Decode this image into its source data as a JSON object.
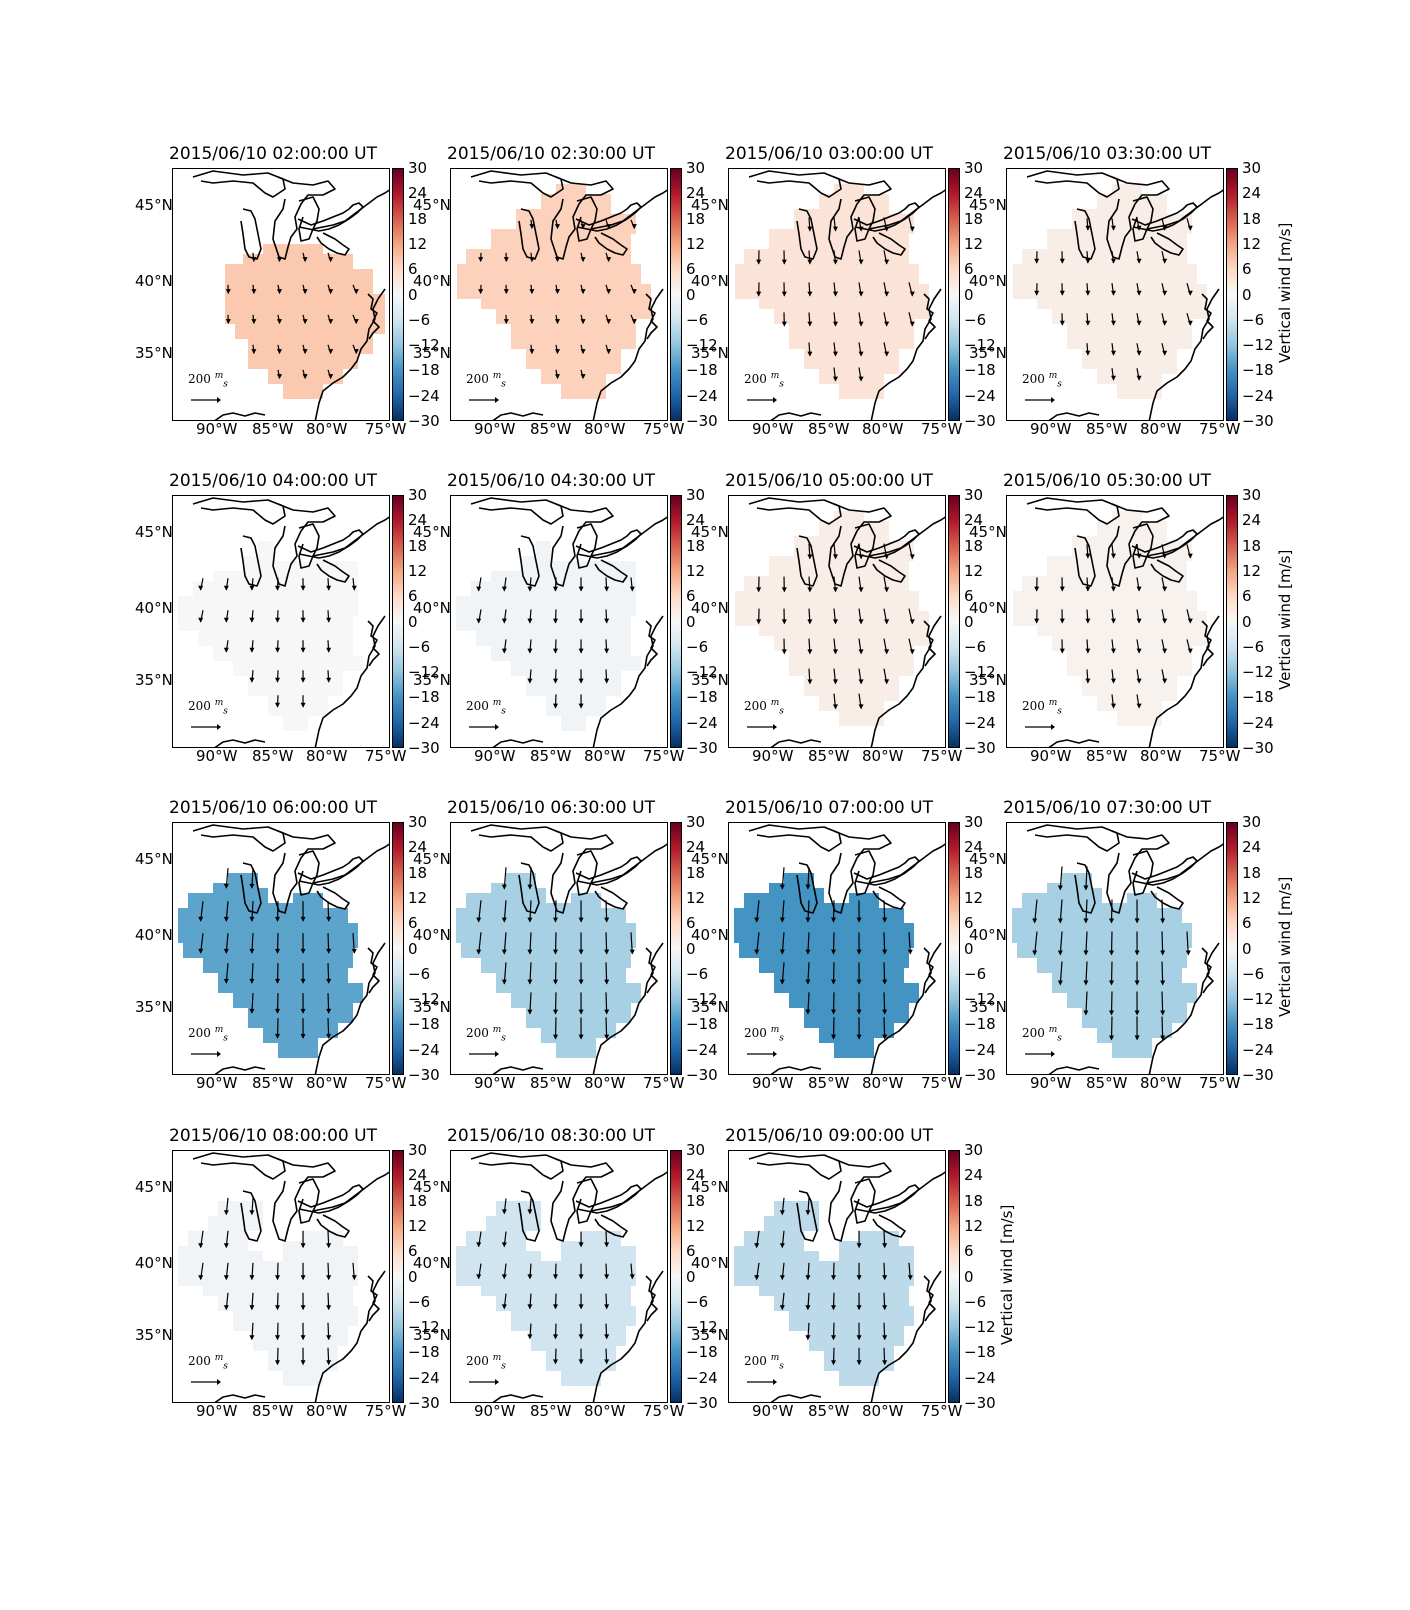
{
  "colorbar": {
    "ticks": [
      "30",
      "24",
      "18",
      "12",
      "6",
      "0",
      "−6",
      "−12",
      "−18",
      "−24",
      "−30"
    ],
    "range": [
      -30,
      30
    ],
    "label": "Vertical wind [m/s]",
    "colormap": [
      "#67001f",
      "#b2182b",
      "#d6604d",
      "#f4a582",
      "#fddbc7",
      "#f7f7f7",
      "#d1e5f0",
      "#92c5de",
      "#4393c3",
      "#2166ac",
      "#053061"
    ]
  },
  "axes": {
    "lon_ticks": [
      "90°W",
      "85°W",
      "80°W",
      "75°W"
    ],
    "lat_ticks": [
      "45°N",
      "40°N",
      "35°N"
    ]
  },
  "scale_arrow": {
    "value": "200",
    "unit_num": "m",
    "unit_den": "s"
  },
  "panels": [
    {
      "title": "2015/06/10 02:00:00 UT",
      "vertical_wind": 8,
      "shape": "A",
      "arrow_strength": 0.2
    },
    {
      "title": "2015/06/10 02:30:00 UT",
      "vertical_wind": 7,
      "shape": "B",
      "arrow_strength": 0.2
    },
    {
      "title": "2015/06/10 03:00:00 UT",
      "vertical_wind": 4,
      "shape": "B",
      "arrow_strength": 0.5
    },
    {
      "title": "2015/06/10 03:30:00 UT",
      "vertical_wind": 2,
      "shape": "B",
      "arrow_strength": 0.4
    },
    {
      "title": "2015/06/10 04:00:00 UT",
      "vertical_wind": 0,
      "shape": "C",
      "arrow_strength": 0.4
    },
    {
      "title": "2015/06/10 04:30:00 UT",
      "vertical_wind": -1,
      "shape": "C",
      "arrow_strength": 0.5
    },
    {
      "title": "2015/06/10 05:00:00 UT",
      "vertical_wind": 2,
      "shape": "B",
      "arrow_strength": 0.6
    },
    {
      "title": "2015/06/10 05:30:00 UT",
      "vertical_wind": 1,
      "shape": "B",
      "arrow_strength": 0.5
    },
    {
      "title": "2015/06/10 06:00:00 UT",
      "vertical_wind": -16,
      "shape": "D",
      "arrow_strength": 0.9
    },
    {
      "title": "2015/06/10 06:30:00 UT",
      "vertical_wind": -10,
      "shape": "D",
      "arrow_strength": 1.0
    },
    {
      "title": "2015/06/10 07:00:00 UT",
      "vertical_wind": -18,
      "shape": "D",
      "arrow_strength": 1.0
    },
    {
      "title": "2015/06/10 07:30:00 UT",
      "vertical_wind": -10,
      "shape": "D",
      "arrow_strength": 1.1
    },
    {
      "title": "2015/06/10 08:00:00 UT",
      "vertical_wind": -1,
      "shape": "E",
      "arrow_strength": 0.7
    },
    {
      "title": "2015/06/10 08:30:00 UT",
      "vertical_wind": -6,
      "shape": "E",
      "arrow_strength": 0.6
    },
    {
      "title": "2015/06/10 09:00:00 UT",
      "vertical_wind": -8,
      "shape": "E",
      "arrow_strength": 0.7
    }
  ]
}
